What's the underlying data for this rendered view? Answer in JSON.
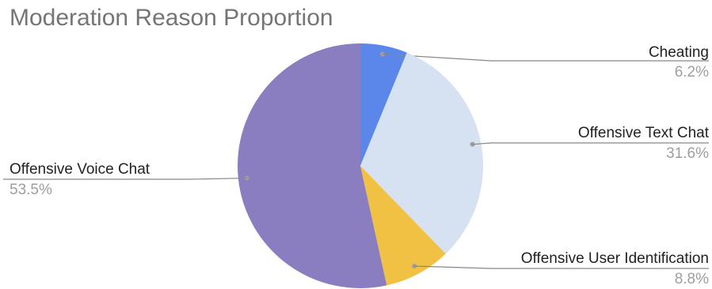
{
  "chart_data": {
    "type": "pie",
    "title": "Moderation Reason Proportion",
    "slices": [
      {
        "label": "Cheating",
        "value": 6.2,
        "value_label": "6.2%",
        "color": "#5b87ea"
      },
      {
        "label": "Offensive Text Chat",
        "value": 31.6,
        "value_label": "31.6%",
        "color": "#d6e2f2"
      },
      {
        "label": "Offensive User Identification",
        "value": 8.8,
        "value_label": "8.8%",
        "color": "#f0c142"
      },
      {
        "label": "Offensive Voice Chat",
        "value": 53.5,
        "value_label": "53.5%",
        "color": "#8b7ec0"
      }
    ],
    "start_angle": "12 o'clock",
    "direction": "clockwise",
    "legend": "none",
    "labels": "outside with leader lines"
  }
}
